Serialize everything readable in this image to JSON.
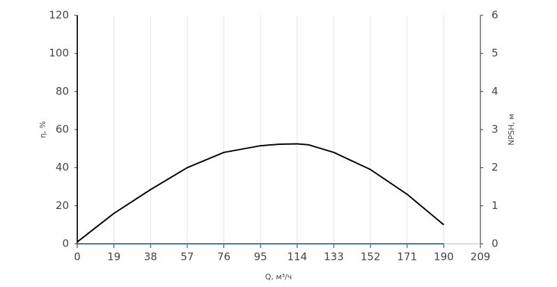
{
  "chart_data": {
    "type": "line",
    "x_label": "Q, м³/ч",
    "y_label": "η, %",
    "y2_label": "NPSH, м",
    "x": [
      0,
      19,
      38,
      57,
      76,
      95,
      105,
      114,
      120,
      133,
      152,
      171,
      190
    ],
    "series": [
      {
        "color": "#000000",
        "values": [
          1,
          16,
          28.5,
          40,
          48,
          51.5,
          52.3,
          52.5,
          52,
          48,
          39,
          26,
          10
        ]
      },
      {
        "color": "#4a6fb5",
        "axis": "y2",
        "values": [
          0,
          0,
          0,
          0,
          0,
          0,
          0,
          0,
          0,
          0,
          0,
          0,
          0
        ]
      }
    ],
    "xlim": [
      0,
      209
    ],
    "xticks": [
      0,
      19,
      38,
      57,
      76,
      95,
      114,
      133,
      152,
      171,
      190,
      209
    ],
    "ylim": [
      0,
      120
    ],
    "yticks": [
      0,
      20,
      40,
      60,
      80,
      100,
      120
    ],
    "y2lim": [
      0,
      6
    ],
    "y2ticks": [
      0,
      1,
      2,
      3,
      4,
      5,
      6
    ],
    "grid": true
  }
}
